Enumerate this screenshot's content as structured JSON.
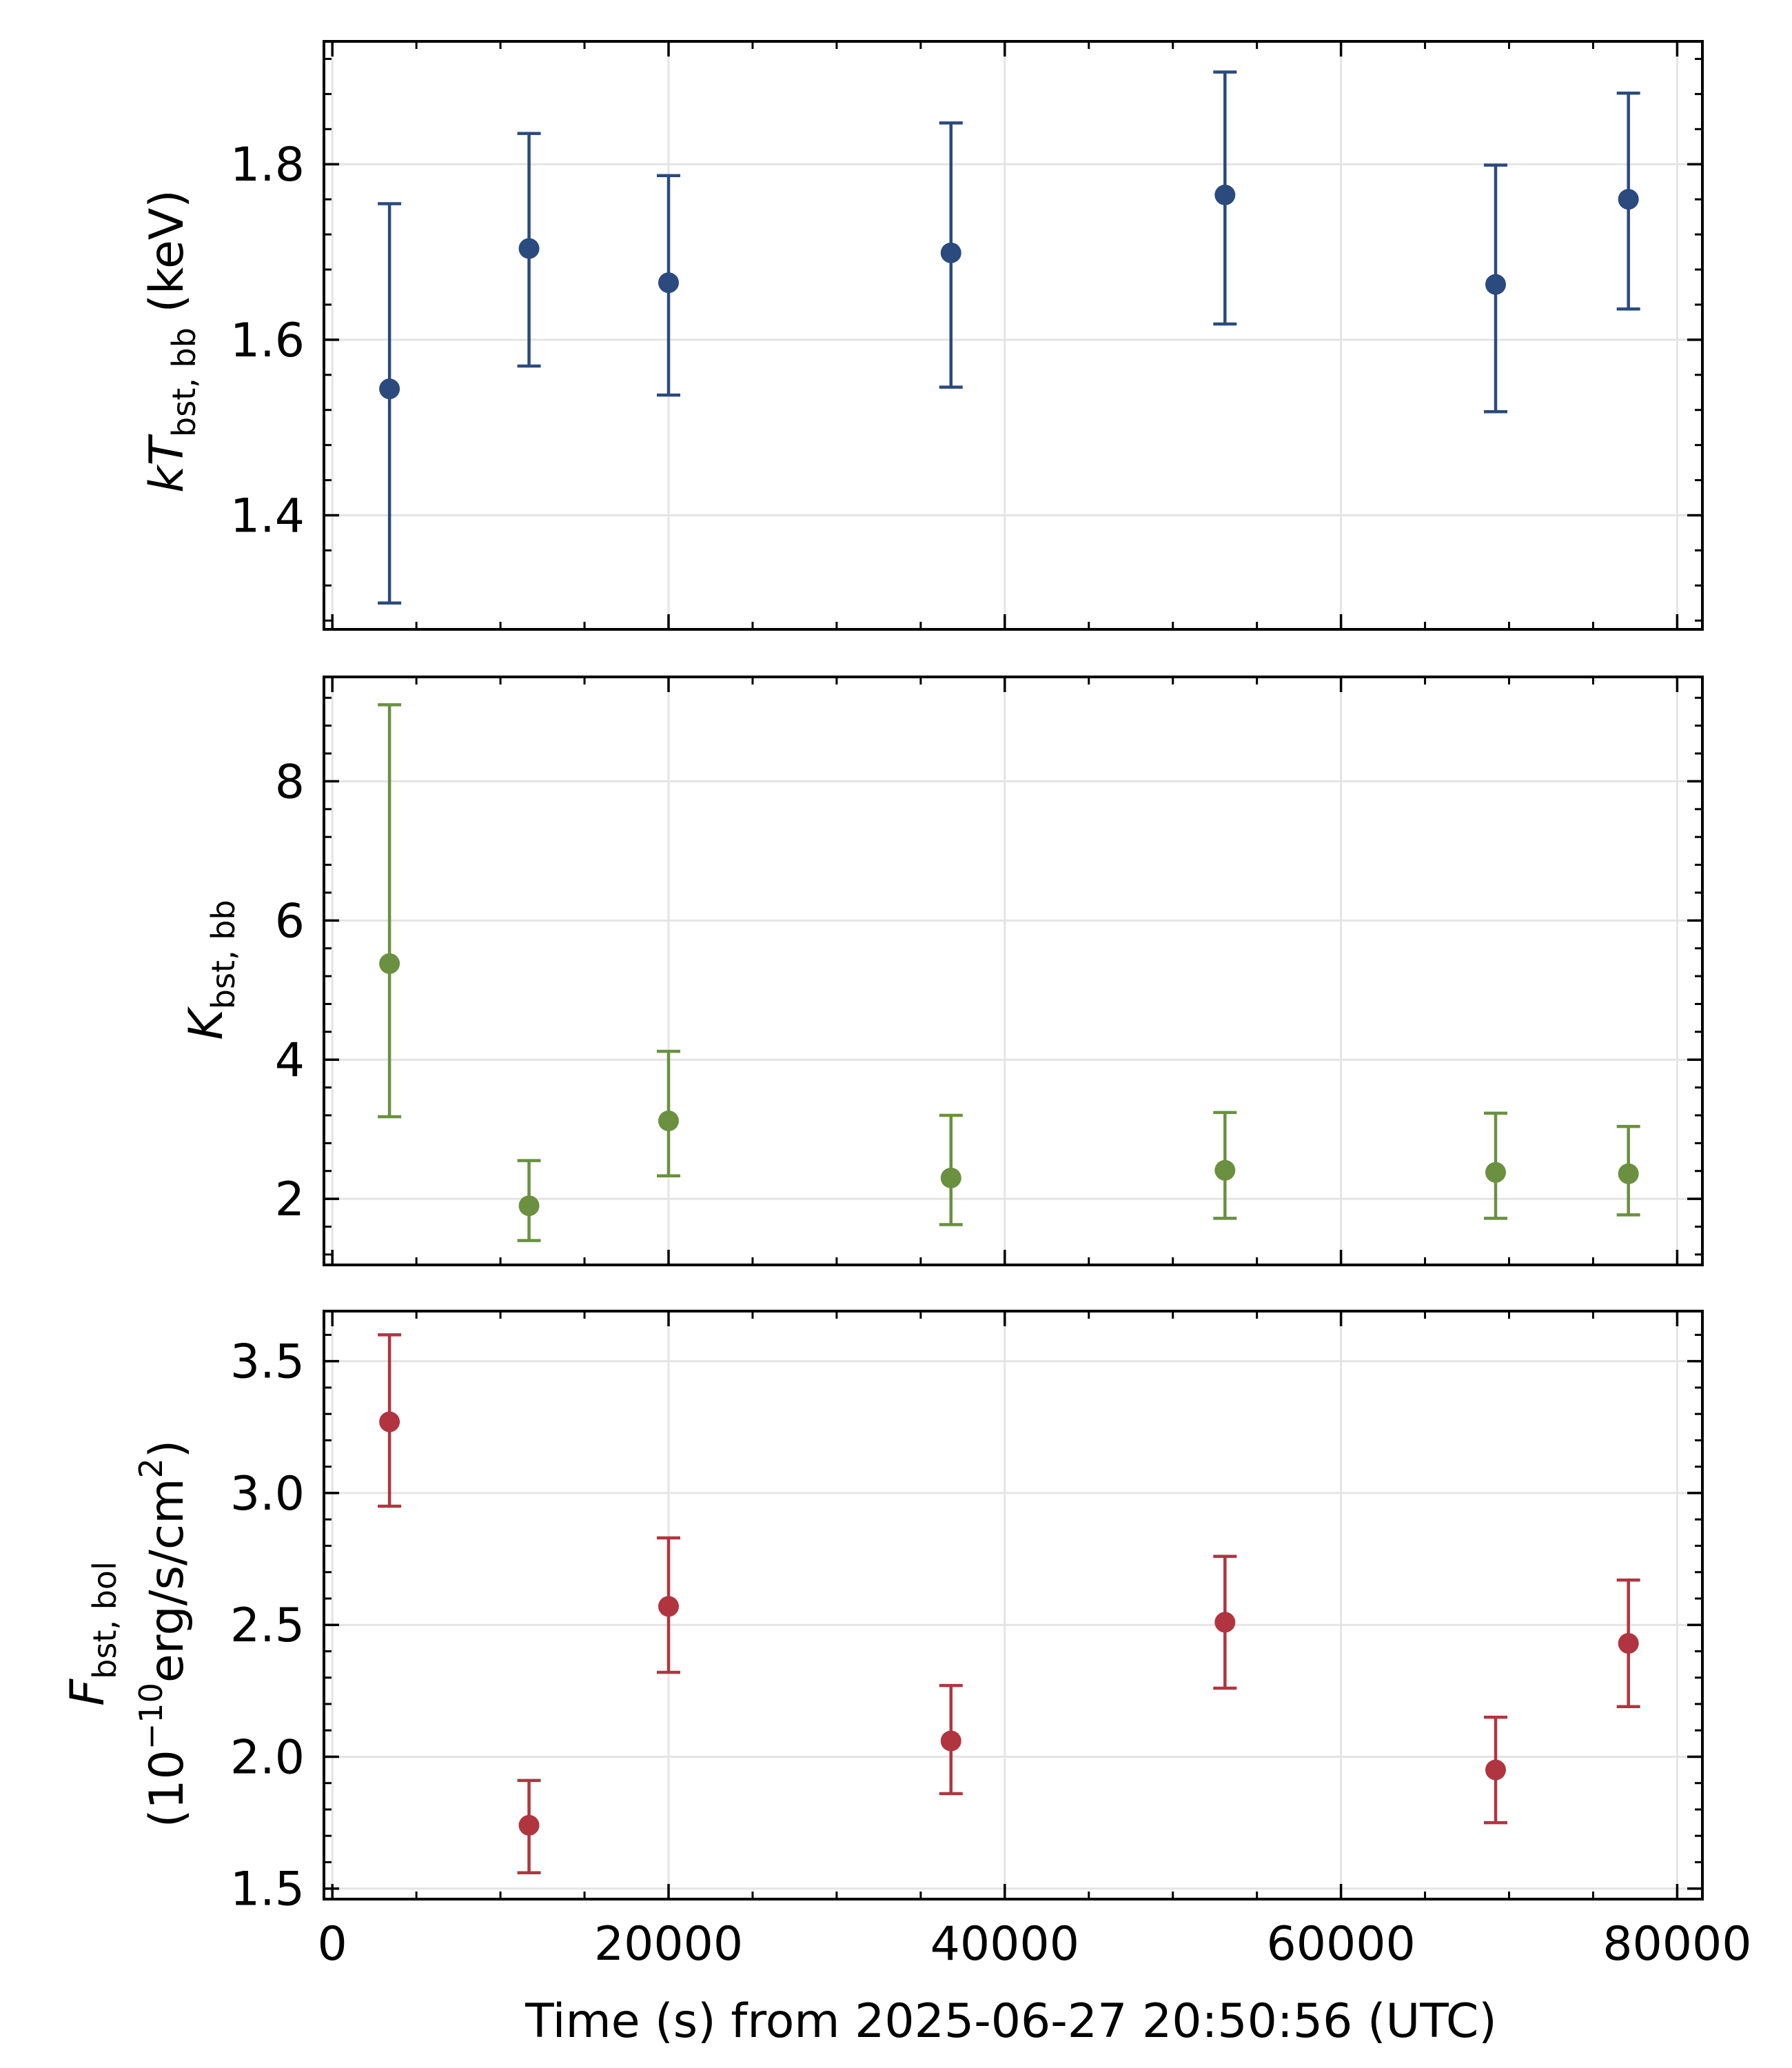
{
  "chart_data": [
    {
      "type": "scatter",
      "panel": "top",
      "ylabel": {
        "main": "kT",
        "sub": "bst, bb",
        "unit": "(keV)"
      },
      "ylim": [
        1.27,
        1.94
      ],
      "yticks": [
        1.4,
        1.6,
        1.8
      ],
      "ytick_labels": [
        "1.4",
        "1.6",
        "1.8"
      ],
      "yminor_step": 0.04,
      "color": "#2b4a7d",
      "x": [
        3400,
        11700,
        20000,
        36800,
        53100,
        69200,
        77100
      ],
      "y": [
        1.544,
        1.704,
        1.665,
        1.699,
        1.765,
        1.663,
        1.76
      ],
      "yerr_low": [
        1.3,
        1.57,
        1.537,
        1.546,
        1.618,
        1.518,
        1.635
      ],
      "yerr_high": [
        1.755,
        1.835,
        1.787,
        1.847,
        1.905,
        1.799,
        1.881
      ]
    },
    {
      "type": "scatter",
      "panel": "middle",
      "ylabel": {
        "main": "K",
        "sub": "bst, bb",
        "unit": ""
      },
      "ylim": [
        1.05,
        9.5
      ],
      "yticks": [
        2,
        4,
        6,
        8
      ],
      "ytick_labels": [
        "2",
        "4",
        "6",
        "8"
      ],
      "yminor_step": 0.4,
      "color": "#6a9040",
      "x": [
        3400,
        11700,
        20000,
        36800,
        53100,
        69200,
        77100
      ],
      "y": [
        5.38,
        1.9,
        3.12,
        2.3,
        2.41,
        2.38,
        2.36
      ],
      "yerr_low": [
        3.18,
        1.4,
        2.33,
        1.63,
        1.72,
        1.72,
        1.77
      ],
      "yerr_high": [
        9.1,
        2.55,
        4.12,
        3.2,
        3.24,
        3.23,
        3.04
      ]
    },
    {
      "type": "scatter",
      "panel": "bottom",
      "ylabel": {
        "main": "F",
        "sub": "bst, bol",
        "unit_prefix": "(10",
        "unit_exp": "−10",
        "unit_mid": "erg/s/cm",
        "unit_sq": "2",
        "unit_end": ")"
      },
      "ylim": [
        1.46,
        3.69
      ],
      "yticks": [
        1.5,
        2.0,
        2.5,
        3.0,
        3.5
      ],
      "ytick_labels": [
        "1.5",
        "2.0",
        "2.5",
        "3.0",
        "3.5"
      ],
      "yminor_step": 0.1,
      "color": "#b03540",
      "x": [
        3400,
        11700,
        20000,
        36800,
        53100,
        69200,
        77100
      ],
      "y": [
        3.27,
        1.74,
        2.57,
        2.06,
        2.51,
        1.95,
        2.43
      ],
      "yerr_low": [
        2.95,
        1.56,
        2.32,
        1.86,
        2.26,
        1.75,
        2.19
      ],
      "yerr_high": [
        3.6,
        1.91,
        2.83,
        2.27,
        2.76,
        2.15,
        2.67
      ]
    }
  ],
  "xaxis": {
    "xlim": [
      -500,
      81500
    ],
    "xticks": [
      0,
      20000,
      40000,
      60000,
      80000
    ],
    "xtick_labels": [
      "0",
      "20000",
      "40000",
      "60000",
      "80000"
    ],
    "xminor_step": 5000,
    "xlabel": "Time (s) from 2025-06-27 20:50:56 (UTC)"
  },
  "grid": true
}
